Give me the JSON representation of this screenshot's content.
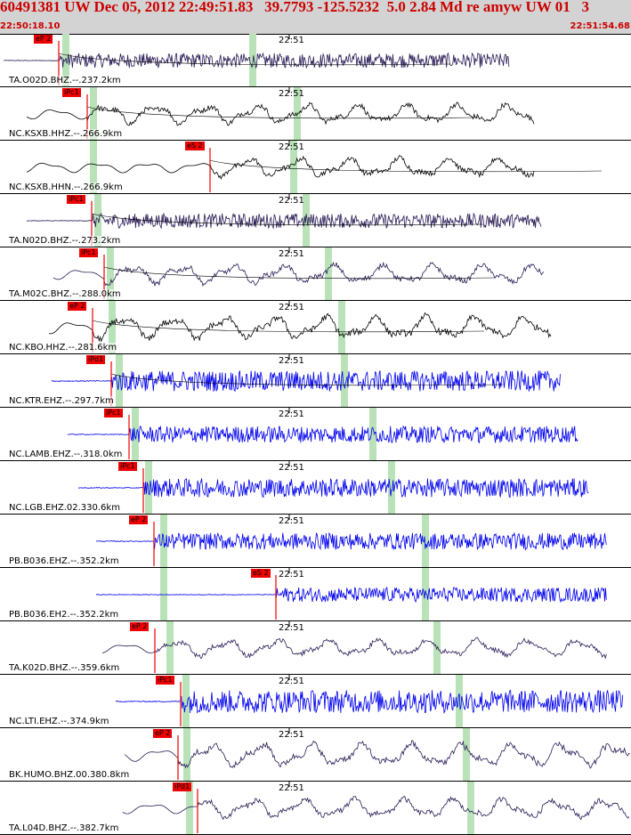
{
  "header": {
    "title": "60491381 UW Dec 05, 2012 22:49:51.83   39.7793 -125.5232  5.0 2.84 Md re amyw UW 01   3",
    "time_start": "22:50:18.10",
    "time_end": "22:51:54.68"
  },
  "colors": {
    "header_bg": "#d3d3d3",
    "header_text": "#cc0000",
    "trace_dark": "#2a1a55",
    "trace_black": "#000000",
    "trace_blue": "#0000ee",
    "pick": "#ee0000",
    "predicted_arrival": "#b9e2b9",
    "model_curve": "#000000"
  },
  "minute_tick_label": "22:51",
  "panels": [
    {
      "label": "TA.O02D.BHZ.--.237.2km",
      "pick": "eP 2",
      "color": "dark",
      "amp": 0.35
    },
    {
      "label": "NC.KSXB.HHZ.--.266.9km",
      "pick": "iPc1",
      "color": "black",
      "amp": 0.5
    },
    {
      "label": "NC.KSXB.HHN.--.266.9km",
      "pick": "eS 2",
      "color": "black",
      "amp": 0.5
    },
    {
      "label": "TA.N02D.BHZ.--.273.2km",
      "pick": "iPc1",
      "color": "dark",
      "amp": 0.35
    },
    {
      "label": "TA.M02C.BHZ.--.288.0km",
      "pick": "iPc1",
      "color": "dark",
      "amp": 0.5
    },
    {
      "label": "NC.KBO.HHZ.--.281.6km",
      "pick": "eP 2",
      "color": "black",
      "amp": 0.6
    },
    {
      "label": "NC.KTR.EHZ.--.297.7km",
      "pick": "iPd1",
      "color": "blue",
      "amp": 0.5
    },
    {
      "label": "NC.LAMB.EHZ.--.318.0km",
      "pick": "iPc1",
      "color": "blue",
      "amp": 0.4
    },
    {
      "label": "NC.LGB.EHZ.02.330.6km",
      "pick": "iPc1",
      "color": "blue",
      "amp": 0.45
    },
    {
      "label": "PB.B036.EHZ.--.352.2km",
      "pick": "eP 2",
      "color": "blue",
      "amp": 0.4
    },
    {
      "label": "PB.B036.EH2.--.352.2km",
      "pick": "eS 2",
      "color": "blue",
      "amp": 0.35
    },
    {
      "label": "TA.K02D.BHZ.--.359.6km",
      "pick": "eP 2",
      "color": "dark",
      "amp": 0.45
    },
    {
      "label": "NC.LTI.EHZ.--.374.9km",
      "pick": "iPc1",
      "color": "blue",
      "amp": 0.55
    },
    {
      "label": "BK.HUMO.BHZ.00.380.8km",
      "pick": "eP 2",
      "color": "dark",
      "amp": 0.6
    },
    {
      "label": "TA.L04D.BHZ.--.382.7km",
      "pick": "iPd1",
      "color": "dark",
      "amp": 0.5
    }
  ]
}
